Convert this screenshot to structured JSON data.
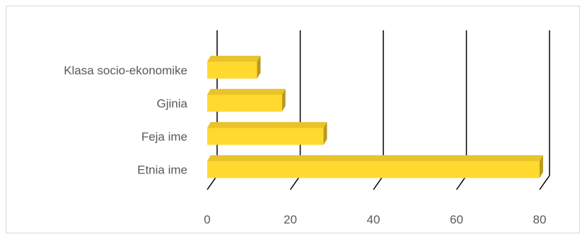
{
  "chart_data": {
    "type": "bar",
    "orientation": "horizontal",
    "style": "3d",
    "categories": [
      "Etnia ime",
      "Feja ime",
      "Gjinia",
      "Klasa socio-ekonomike"
    ],
    "values": [
      80,
      28,
      18,
      12
    ],
    "title": "",
    "xlabel": "",
    "ylabel": "",
    "xlim": [
      0,
      80
    ],
    "xticks": [
      "0",
      "20",
      "40",
      "60",
      "80"
    ],
    "grid": "vertical",
    "legend": "none",
    "colors": {
      "bar_front": "#ffd92f",
      "bar_top": "#e8c32a",
      "bar_side": "#b89a1a",
      "grid": "#000000",
      "text": "#595959"
    }
  }
}
